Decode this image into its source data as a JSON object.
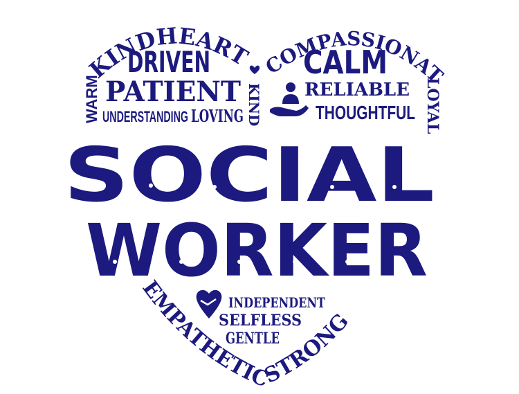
{
  "colors": {
    "ink": "#1c1a7e",
    "background": "#ffffff"
  },
  "words": {
    "warm": "WARM",
    "kindhearted": "KINDHEARTED",
    "driven": "DRIVEN",
    "patient": "PATIENT",
    "understanding": "UNDERSTANDING",
    "loving": "LOVING",
    "kind": "KIND",
    "compassionate": "COMPASSIONATE",
    "loyal": "LOYAL",
    "calm": "CALM",
    "reliable": "RELIABLE",
    "thoughtful": "THOUGHTFUL",
    "social": "SOCIAL",
    "worker": "WORKER",
    "independent": "INDEPENDENT",
    "selfless": "SELFLESS",
    "gentle": "GENTLE",
    "empathetic": "EMPATHETIC",
    "strong": "STRONG"
  },
  "icons": {
    "small_heart": "heart-icon",
    "caring_hand": "hand-person-icon",
    "handshake_heart": "handshake-heart-icon"
  }
}
